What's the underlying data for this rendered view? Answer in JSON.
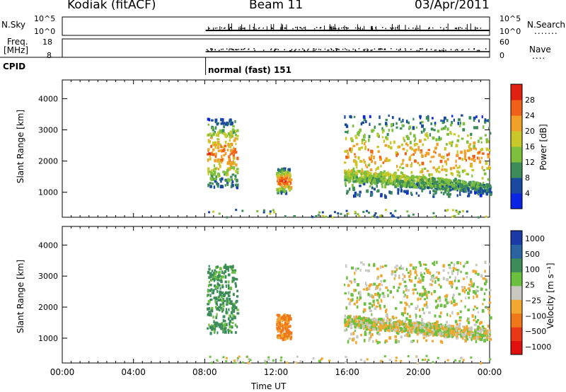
{
  "header": {
    "station": "Kodiak (fitACF)",
    "beam": "Beam 11",
    "date": "03/Apr/2011"
  },
  "nsky_panel": {
    "left_label": "N.Sky",
    "left_ticks": [
      "10^5",
      "10^0"
    ],
    "right_ticks": [
      "10^5",
      "10^0"
    ],
    "right_label": "N.Search",
    "right_dots": "......."
  },
  "freq_panel": {
    "left_label_1": "Freq.",
    "left_label_2": "[MHz]",
    "left_ticks": [
      "18",
      "8"
    ],
    "right_ticks": [
      "60",
      "0"
    ],
    "right_label": "Nave",
    "right_dots": "...."
  },
  "cpid": {
    "label": "CPID",
    "mode": "normal (fast) 151"
  },
  "chart_data": [
    {
      "type": "heatmap",
      "title": "",
      "ylabel": "Slant Range [km]",
      "xlabel": "",
      "xlim_hours": [
        0,
        24
      ],
      "ylim": [
        200,
        4600
      ],
      "y_ticks": [
        "1000",
        "2000",
        "3000",
        "4000"
      ],
      "colorbar": {
        "label": "Power [dB]",
        "ticks": [
          "4",
          "8",
          "12",
          "16",
          "20",
          "24",
          "28"
        ],
        "colors": [
          "#0a24e6",
          "#1a4aa0",
          "#3c8c5a",
          "#7ec03c",
          "#c8c828",
          "#f0a028",
          "#f06018",
          "#e02010"
        ]
      },
      "echo_regions": [
        {
          "t_start": 8.1,
          "t_end": 9.8,
          "r_start": 1200,
          "r_end": 3400,
          "peak_db": 26
        },
        {
          "t_start": 12.0,
          "t_end": 12.8,
          "r_start": 1000,
          "r_end": 1800,
          "peak_db": 28
        },
        {
          "t_start": 15.8,
          "t_end": 24.0,
          "r_start": 900,
          "r_end": 3500,
          "peak_db": 24
        }
      ]
    },
    {
      "type": "heatmap",
      "title": "",
      "ylabel": "Slant Range [km]",
      "xlabel": "Time UT",
      "xlim_hours": [
        0,
        24
      ],
      "ylim": [
        200,
        4600
      ],
      "y_ticks": [
        "1000",
        "2000",
        "3000",
        "4000"
      ],
      "x_ticks": [
        "00:00",
        "04:00",
        "08:00",
        "12:00",
        "16:00",
        "20:00",
        "00:00"
      ],
      "colorbar": {
        "label": "Velocity [m s⁻¹]",
        "ticks": [
          "1000",
          "500",
          "100",
          "25",
          "−25",
          "−100",
          "−500",
          "−1000"
        ],
        "colors": [
          "#1a3aa8",
          "#2a64a0",
          "#3c8c5a",
          "#6cc040",
          "#c8c8c0",
          "#f0a830",
          "#f07818",
          "#e83818",
          "#e01010"
        ]
      },
      "echo_regions": [
        {
          "t_start": 8.1,
          "t_end": 9.8,
          "r_start": 1200,
          "r_end": 3400,
          "velocity": 150
        },
        {
          "t_start": 12.0,
          "t_end": 12.8,
          "r_start": 1000,
          "r_end": 1800,
          "velocity": -120
        },
        {
          "t_start": 15.8,
          "t_end": 24.0,
          "r_start": 900,
          "r_end": 3500,
          "velocity": 0
        }
      ]
    }
  ]
}
